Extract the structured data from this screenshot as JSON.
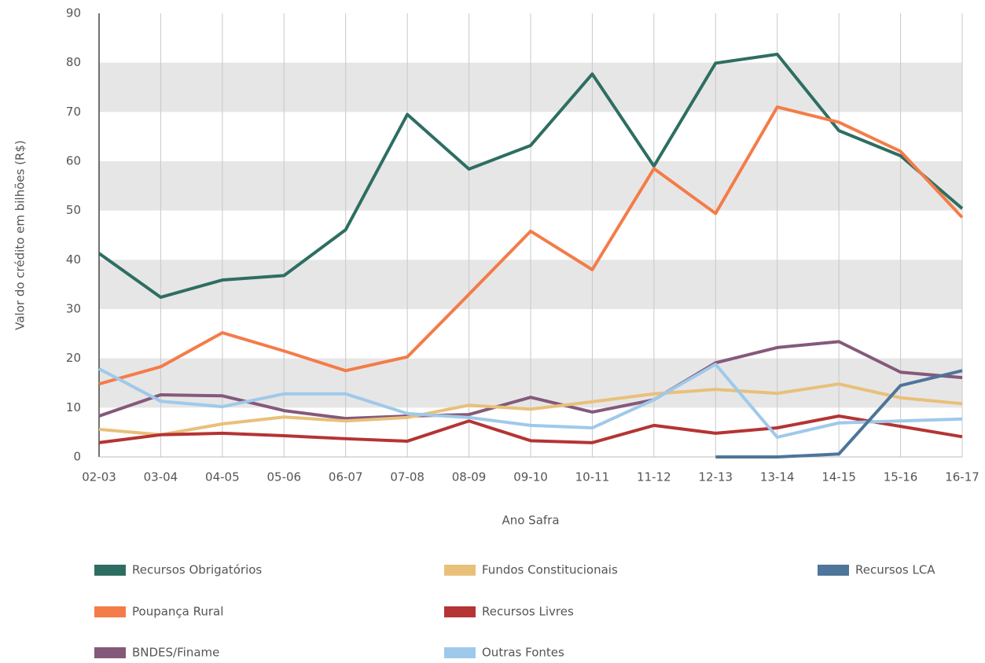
{
  "chart_data": {
    "type": "line",
    "y_label": "Valor do crédito em bilhões (R$)",
    "x_label": "Ano Safra",
    "categories": [
      "02-03",
      "03-04",
      "04-05",
      "05-06",
      "06-07",
      "07-08",
      "08-09",
      "09-10",
      "10-11",
      "11-12",
      "12-13",
      "13-14",
      "14-15",
      "15-16",
      "16-17"
    ],
    "ylim": [
      0,
      90
    ],
    "yticks": [
      0,
      10,
      20,
      30,
      40,
      50,
      60,
      70,
      80,
      90
    ],
    "grid": true,
    "bands": true,
    "legend": "bottom",
    "series": [
      {
        "name": "Recursos Obrigatórios",
        "color": "#2e6e62",
        "values": [
          41.3,
          32.4,
          35.9,
          36.8,
          46.1,
          69.5,
          58.4,
          63.2,
          77.7,
          59.0,
          79.9,
          81.7,
          66.2,
          61.1,
          50.4
        ]
      },
      {
        "name": "Poupança Rural",
        "color": "#f47c48",
        "values": [
          14.8,
          18.3,
          25.2,
          21.5,
          17.5,
          20.3,
          33.0,
          45.8,
          38.0,
          58.5,
          49.4,
          71.0,
          67.9,
          62.0,
          48.6
        ]
      },
      {
        "name": "BNDES/Finame",
        "color": "#85597a",
        "values": [
          8.3,
          12.6,
          12.4,
          9.4,
          7.8,
          8.3,
          8.6,
          12.1,
          9.1,
          11.6,
          19.1,
          22.2,
          23.4,
          17.2,
          16.1
        ]
      },
      {
        "name": "Fundos Constitucionais",
        "color": "#e9c07a",
        "values": [
          5.6,
          4.5,
          6.7,
          8.1,
          7.3,
          8.0,
          10.5,
          9.7,
          11.2,
          12.8,
          13.7,
          12.9,
          14.8,
          12.0,
          10.8
        ]
      },
      {
        "name": "Recursos Livres",
        "color": "#b53434",
        "values": [
          2.9,
          4.5,
          4.8,
          4.3,
          3.7,
          3.2,
          7.3,
          3.3,
          2.9,
          6.4,
          4.8,
          5.9,
          8.3,
          6.2,
          4.1
        ]
      },
      {
        "name": "Outras Fontes",
        "color": "#9fc9ea",
        "values": [
          17.9,
          11.3,
          10.2,
          12.8,
          12.8,
          8.8,
          8.0,
          6.4,
          5.9,
          11.6,
          18.8,
          4.0,
          6.9,
          7.3,
          7.7
        ]
      },
      {
        "name": "Recursos LCA",
        "color": "#4e759a",
        "values": [
          null,
          null,
          null,
          null,
          null,
          null,
          null,
          null,
          null,
          null,
          0,
          0,
          0.6,
          14.5,
          17.5
        ]
      }
    ]
  }
}
